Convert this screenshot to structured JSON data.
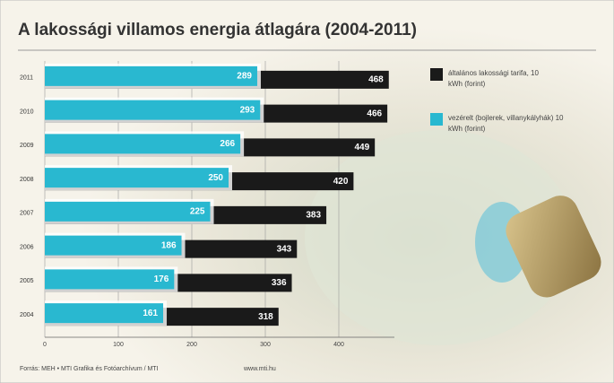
{
  "chart_data": {
    "type": "hbar_overlap",
    "title": "A lakossági villamos energia átlagára (2004-2011)",
    "categories": [
      "2011",
      "2010",
      "2009",
      "2008",
      "2007",
      "2006",
      "2005",
      "2004"
    ],
    "series": [
      {
        "name": "általános lakossági tarifa, 10 kWh (forint)",
        "color": "#1a1a1a",
        "values": [
          468,
          466,
          449,
          420,
          383,
          343,
          336,
          318
        ]
      },
      {
        "name": "vezérelt (bojlerek, villanykályhák) 10 kWh (forint)",
        "color": "#29b8d0",
        "values": [
          289,
          293,
          266,
          250,
          225,
          186,
          176,
          161
        ]
      }
    ],
    "xlim": [
      0,
      500
    ],
    "xticks": [
      0,
      100,
      200,
      300,
      400
    ],
    "grid": true,
    "source": "Forrás: MEH • MTI Grafika és Fotóarchívum / MTI",
    "website": "www.mti.hu"
  }
}
